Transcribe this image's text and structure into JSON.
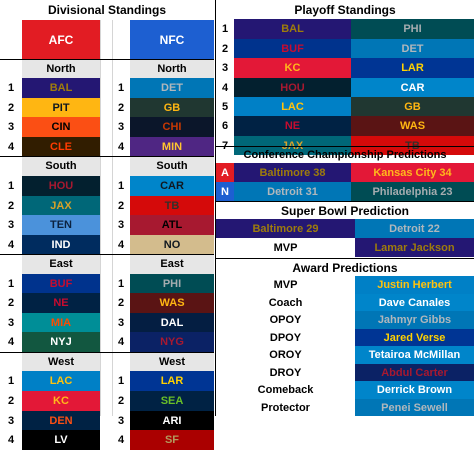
{
  "divisional": {
    "title": "Divisional Standings",
    "afc_label": "AFC",
    "nfc_label": "NFC",
    "afc_color": "#e21c23",
    "nfc_color": "#1d5fd1",
    "header_bg": "#e6e6e6",
    "divisions": [
      {
        "afc_name": "North",
        "nfc_name": "North",
        "afc": [
          {
            "rank": "1",
            "team": "BAL",
            "bg": "#241773",
            "fg": "#9e7c0c"
          },
          {
            "rank": "2",
            "team": "PIT",
            "bg": "#ffb612",
            "fg": "#101820"
          },
          {
            "rank": "3",
            "team": "CIN",
            "bg": "#fb4f14",
            "fg": "#000000"
          },
          {
            "rank": "4",
            "team": "CLE",
            "bg": "#311d00",
            "fg": "#ff3c00"
          }
        ],
        "nfc": [
          {
            "rank": "1",
            "team": "DET",
            "bg": "#0076b6",
            "fg": "#b0b7bc"
          },
          {
            "rank": "2",
            "team": "GB",
            "bg": "#203731",
            "fg": "#ffb612"
          },
          {
            "rank": "3",
            "team": "CHI",
            "bg": "#0b162a",
            "fg": "#c83803"
          },
          {
            "rank": "4",
            "team": "MIN",
            "bg": "#4f2683",
            "fg": "#ffc62f"
          }
        ]
      },
      {
        "afc_name": "South",
        "nfc_name": "South",
        "afc": [
          {
            "rank": "1",
            "team": "HOU",
            "bg": "#03202f",
            "fg": "#a71930"
          },
          {
            "rank": "2",
            "team": "JAX",
            "bg": "#006778",
            "fg": "#d7a22a"
          },
          {
            "rank": "3",
            "team": "TEN",
            "bg": "#4b92db",
            "fg": "#0c2340"
          },
          {
            "rank": "4",
            "team": "IND",
            "bg": "#002c5f",
            "fg": "#ffffff"
          }
        ],
        "nfc": [
          {
            "rank": "1",
            "team": "CAR",
            "bg": "#0085ca",
            "fg": "#101820"
          },
          {
            "rank": "2",
            "team": "TB",
            "bg": "#d50a0a",
            "fg": "#34302b"
          },
          {
            "rank": "3",
            "team": "ATL",
            "bg": "#a71930",
            "fg": "#000000"
          },
          {
            "rank": "4",
            "team": "NO",
            "bg": "#d3bc8d",
            "fg": "#101820"
          }
        ]
      },
      {
        "afc_name": "East",
        "nfc_name": "East",
        "afc": [
          {
            "rank": "1",
            "team": "BUF",
            "bg": "#00338d",
            "fg": "#c60c30"
          },
          {
            "rank": "2",
            "team": "NE",
            "bg": "#002244",
            "fg": "#c60c30"
          },
          {
            "rank": "3",
            "team": "MIA",
            "bg": "#008e97",
            "fg": "#fc4c02"
          },
          {
            "rank": "4",
            "team": "NYJ",
            "bg": "#125740",
            "fg": "#ffffff"
          }
        ],
        "nfc": [
          {
            "rank": "1",
            "team": "PHI",
            "bg": "#004c54",
            "fg": "#a5acaf"
          },
          {
            "rank": "2",
            "team": "WAS",
            "bg": "#5a1414",
            "fg": "#ffb612"
          },
          {
            "rank": "3",
            "team": "DAL",
            "bg": "#041e42",
            "fg": "#ffffff"
          },
          {
            "rank": "4",
            "team": "NYG",
            "bg": "#0b2265",
            "fg": "#a71930"
          }
        ]
      },
      {
        "afc_name": "West",
        "nfc_name": "West",
        "afc": [
          {
            "rank": "1",
            "team": "LAC",
            "bg": "#0080c6",
            "fg": "#ffc20e"
          },
          {
            "rank": "2",
            "team": "KC",
            "bg": "#e31837",
            "fg": "#ffb81c"
          },
          {
            "rank": "3",
            "team": "DEN",
            "bg": "#002244",
            "fg": "#fb4f14"
          },
          {
            "rank": "4",
            "team": "LV",
            "bg": "#000000",
            "fg": "#ffffff"
          }
        ],
        "nfc": [
          {
            "rank": "1",
            "team": "LAR",
            "bg": "#003594",
            "fg": "#ffd100"
          },
          {
            "rank": "2",
            "team": "SEA",
            "bg": "#002244",
            "fg": "#69be28"
          },
          {
            "rank": "3",
            "team": "ARI",
            "bg": "#000000",
            "fg": "#ffffff"
          },
          {
            "rank": "4",
            "team": "SF",
            "bg": "#aa0000",
            "fg": "#b3995d"
          }
        ]
      }
    ]
  },
  "playoff": {
    "title": "Playoff Standings",
    "rows": [
      {
        "seed": "1",
        "afc": {
          "team": "BAL",
          "bg": "#241773",
          "fg": "#9e7c0c"
        },
        "nfc": {
          "team": "PHI",
          "bg": "#004c54",
          "fg": "#a5acaf"
        }
      },
      {
        "seed": "2",
        "afc": {
          "team": "BUF",
          "bg": "#00338d",
          "fg": "#c60c30"
        },
        "nfc": {
          "team": "DET",
          "bg": "#0076b6",
          "fg": "#b0b7bc"
        }
      },
      {
        "seed": "3",
        "afc": {
          "team": "KC",
          "bg": "#e31837",
          "fg": "#ffb81c"
        },
        "nfc": {
          "team": "LAR",
          "bg": "#003594",
          "fg": "#ffd100"
        }
      },
      {
        "seed": "4",
        "afc": {
          "team": "HOU",
          "bg": "#03202f",
          "fg": "#a71930"
        },
        "nfc": {
          "team": "CAR",
          "bg": "#0085ca",
          "fg": "#ffffff"
        }
      },
      {
        "seed": "5",
        "afc": {
          "team": "LAC",
          "bg": "#0080c6",
          "fg": "#ffc20e"
        },
        "nfc": {
          "team": "GB",
          "bg": "#203731",
          "fg": "#ffb612"
        }
      },
      {
        "seed": "6",
        "afc": {
          "team": "NE",
          "bg": "#002244",
          "fg": "#c60c30"
        },
        "nfc": {
          "team": "WAS",
          "bg": "#5a1414",
          "fg": "#ffb612"
        }
      },
      {
        "seed": "7",
        "afc": {
          "team": "JAX",
          "bg": "#006778",
          "fg": "#d7a22a"
        },
        "nfc": {
          "team": "TB",
          "bg": "#d50a0a",
          "fg": "#34302b"
        }
      }
    ]
  },
  "conference_championship": {
    "title": "Conference Championship Predictions",
    "rows": [
      {
        "label": "A",
        "label_bg": "#e21c23",
        "left": {
          "text": "Baltimore 38",
          "bg": "#241773",
          "fg": "#9e7c0c"
        },
        "right": {
          "text": "Kansas City 34",
          "bg": "#e31837",
          "fg": "#ffb81c"
        }
      },
      {
        "label": "N",
        "label_bg": "#1d5fd1",
        "left": {
          "text": "Detroit 31",
          "bg": "#0076b6",
          "fg": "#b0b7bc"
        },
        "right": {
          "text": "Philadelphia 23",
          "bg": "#004c54",
          "fg": "#a5acaf"
        }
      }
    ]
  },
  "super_bowl": {
    "title": "Super Bowl Prediction",
    "left": {
      "text": "Baltimore 29",
      "bg": "#241773",
      "fg": "#9e7c0c"
    },
    "right": {
      "text": "Detroit 22",
      "bg": "#0076b6",
      "fg": "#b0b7bc"
    },
    "mvp_label": "MVP",
    "mvp": {
      "text": "Lamar Jackson",
      "bg": "#241773",
      "fg": "#9e7c0c"
    }
  },
  "awards": {
    "title": "Award Predictions",
    "rows": [
      {
        "award": "MVP",
        "winner": "Justin Herbert",
        "bg": "#0080c6",
        "fg": "#ffc20e"
      },
      {
        "award": "Coach",
        "winner": "Dave Canales",
        "bg": "#0085ca",
        "fg": "#ffffff"
      },
      {
        "award": "OPOY",
        "winner": "Jahmyr Gibbs",
        "bg": "#0076b6",
        "fg": "#b0b7bc"
      },
      {
        "award": "DPOY",
        "winner": "Jared Verse",
        "bg": "#003594",
        "fg": "#ffd100"
      },
      {
        "award": "OROY",
        "winner": "Tetairoa McMillan",
        "bg": "#0085ca",
        "fg": "#ffffff"
      },
      {
        "award": "DROY",
        "winner": "Abdul Carter",
        "bg": "#0b2265",
        "fg": "#a71930"
      },
      {
        "award": "Comeback",
        "winner": "Derrick Brown",
        "bg": "#0085ca",
        "fg": "#ffffff"
      },
      {
        "award": "Protector",
        "winner": "Penei Sewell",
        "bg": "#0076b6",
        "fg": "#b0b7bc"
      }
    ]
  }
}
